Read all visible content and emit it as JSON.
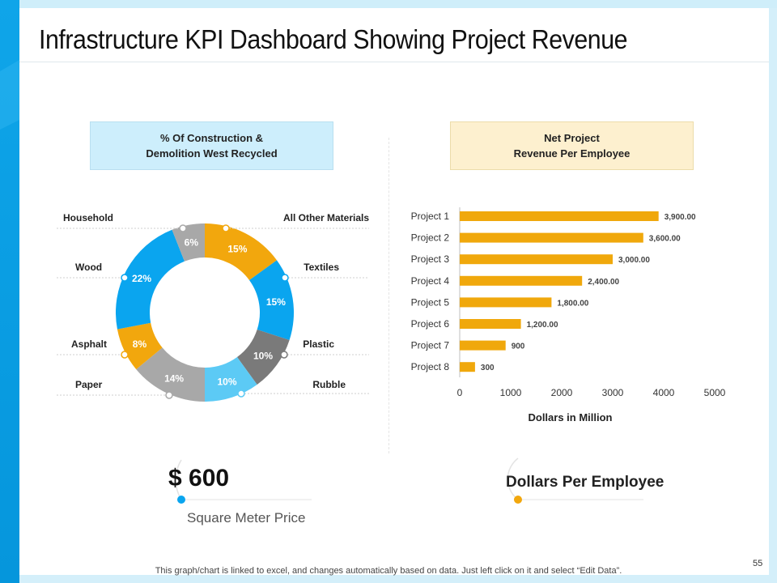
{
  "page": {
    "title": "Infrastructure KPI Dashboard Showing Project Revenue",
    "page_number": "55",
    "footer_note": "This graph/chart is linked to excel, and changes automatically based on data. Just left click on it and select “Edit Data”."
  },
  "panels": {
    "left_header_line1": "% Of Construction &",
    "left_header_line2": "Demolition West Recycled",
    "right_header_line1": "Net Project",
    "right_header_line2": "Revenue Per Employee"
  },
  "kpis": {
    "price_value": "$ 600",
    "price_caption": "Square Meter Price",
    "per_employee_caption": "Dollars Per Employee"
  },
  "colors": {
    "blue": "#0aa5ef",
    "orange": "#f2a70d",
    "gray": "#a8a8a8",
    "dark_gray": "#7a7a7a",
    "light_blue": "#5ccaf5",
    "bar": "#f0a80c"
  },
  "chart_data": [
    {
      "type": "pie",
      "donut": true,
      "title": "% Of Construction & Demolition West Recycled",
      "slices": [
        {
          "label": "All Other Materials",
          "value": 15,
          "value_label": "15%",
          "color": "#f2a70d"
        },
        {
          "label": "Textiles",
          "value": 15,
          "value_label": "15%",
          "color": "#0aa5ef"
        },
        {
          "label": "Plastic",
          "value": 10,
          "value_label": "10%",
          "color": "#7a7a7a"
        },
        {
          "label": "Rubble",
          "value": 10,
          "value_label": "10%",
          "color": "#5ccaf5"
        },
        {
          "label": "Paper",
          "value": 14,
          "value_label": "14%",
          "color": "#a8a8a8"
        },
        {
          "label": "Asphalt",
          "value": 8,
          "value_label": "8%",
          "color": "#f2a70d"
        },
        {
          "label": "Wood",
          "value": 22,
          "value_label": "22%",
          "color": "#0aa5ef"
        },
        {
          "label": "Household",
          "value": 6,
          "value_label": "6%",
          "color": "#a8a8a8"
        }
      ]
    },
    {
      "type": "bar",
      "orientation": "horizontal",
      "title": "Net Project Revenue Per Employee",
      "categories": [
        "Project 1",
        "Project 2",
        "Project 3",
        "Project 4",
        "Project 5",
        "Project 6",
        "Project 7",
        "Project 8"
      ],
      "values": [
        3900,
        3600,
        3000,
        2400,
        1800,
        1200,
        900,
        300
      ],
      "value_labels": [
        "3,900.00",
        "3,600.00",
        "3,000.00",
        "2,400.00",
        "1,800.00",
        "1,200.00",
        "900",
        "300"
      ],
      "xlabel": "Dollars in Million",
      "ylabel": "",
      "xlim": [
        0,
        5000
      ],
      "xticks": [
        "0",
        "1000",
        "2000",
        "3000",
        "4000",
        "5000"
      ],
      "grid": false
    }
  ]
}
